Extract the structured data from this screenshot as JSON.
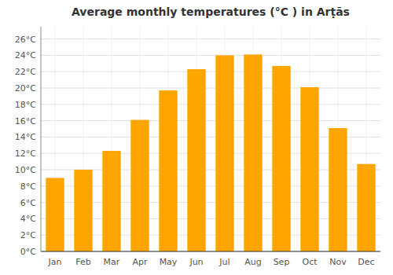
{
  "chart_data": {
    "type": "bar",
    "title": "Average monthly temperatures (°C ) in Arṭās",
    "categories": [
      "Jan",
      "Feb",
      "Mar",
      "Apr",
      "May",
      "Jun",
      "Jul",
      "Aug",
      "Sep",
      "Oct",
      "Nov",
      "Dec"
    ],
    "values": [
      9,
      10,
      12.3,
      16.1,
      19.7,
      22.3,
      24.0,
      24.1,
      22.7,
      20.1,
      15.1,
      10.7
    ],
    "color": "#FFA500",
    "ylim": [
      0,
      27.5
    ],
    "yticks": [
      {
        "value": 0,
        "label": "0°C"
      },
      {
        "value": 2,
        "label": "2°C"
      },
      {
        "value": 4,
        "label": "4°C"
      },
      {
        "value": 6,
        "label": "6°C"
      },
      {
        "value": 8,
        "label": "8°C"
      },
      {
        "value": 10,
        "label": "10°C"
      },
      {
        "value": 12,
        "label": "12°C"
      },
      {
        "value": 14,
        "label": "14°C"
      },
      {
        "value": 16,
        "label": "16°C"
      },
      {
        "value": 18,
        "label": "18°C"
      },
      {
        "value": 20,
        "label": "20°C"
      },
      {
        "value": 22,
        "label": "22°C"
      },
      {
        "value": 24,
        "label": "24°C"
      },
      {
        "value": 26,
        "label": "26°C"
      }
    ],
    "grid": true
  }
}
